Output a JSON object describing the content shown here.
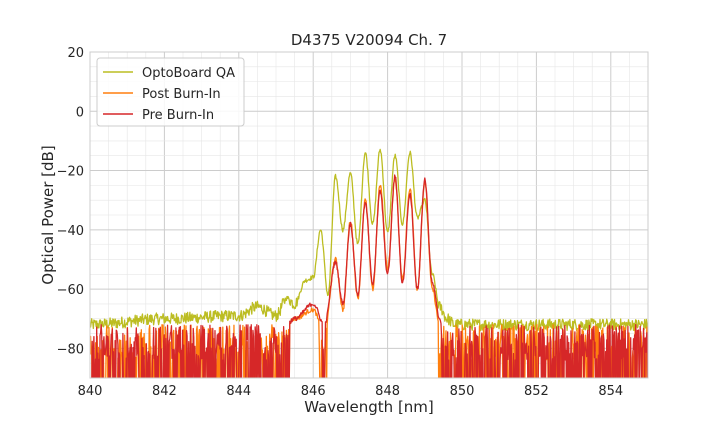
{
  "chart_data": {
    "type": "line",
    "title": "D4375 V20094 Ch. 7",
    "xlabel": "Wavelength [nm]",
    "ylabel": "Optical Power [dB]",
    "xlim": [
      840,
      855
    ],
    "ylim": [
      -90,
      20
    ],
    "xticks": [
      "840",
      "842",
      "844",
      "846",
      "848",
      "850",
      "852",
      "854"
    ],
    "yticks": [
      "20",
      "0",
      "−20",
      "−40",
      "−60",
      "−80"
    ],
    "grid": true,
    "legend_position": "top-left",
    "series": [
      {
        "name": "OptoBoard QA",
        "color": "#bcbd22",
        "noise_floor": -72,
        "x": [
          840.0,
          842.0,
          844.0,
          844.5,
          845.0,
          845.3,
          845.5,
          845.8,
          846.0,
          846.2,
          846.4,
          846.6,
          846.8,
          847.0,
          847.2,
          847.4,
          847.6,
          847.8,
          848.0,
          848.2,
          848.4,
          848.6,
          848.8,
          849.0,
          849.2,
          849.4,
          849.6,
          849.8,
          850.0,
          855.0
        ],
        "values": [
          -72,
          -70,
          -69,
          -66,
          -69,
          -63,
          -65,
          -57,
          -56,
          -40,
          -62,
          -22,
          -40,
          -21,
          -45,
          -14,
          -38,
          -13,
          -41,
          -15,
          -38,
          -14,
          -36,
          -30,
          -55,
          -66,
          -70,
          -72,
          -72,
          -72
        ]
      },
      {
        "name": "Post Burn-In",
        "color": "#ff7f0e",
        "noise_floor": -80,
        "x": [
          840.0,
          840.6,
          844.0,
          845.0,
          845.5,
          846.0,
          846.3,
          846.6,
          846.8,
          847.0,
          847.2,
          847.4,
          847.6,
          847.8,
          848.0,
          848.2,
          848.4,
          848.6,
          848.8,
          849.0,
          849.2,
          849.4,
          849.6,
          850.0,
          855.0
        ],
        "values": [
          -72,
          -80,
          -80,
          -78,
          -70,
          -67,
          -75,
          -50,
          -67,
          -37,
          -63,
          -30,
          -60,
          -25,
          -53,
          -23,
          -57,
          -26,
          -60,
          -24,
          -60,
          -72,
          -82,
          -80,
          -80
        ]
      },
      {
        "name": "Pre Burn-In",
        "color": "#d62728",
        "noise_floor": -80,
        "x": [
          840.0,
          840.6,
          844.0,
          845.0,
          845.5,
          846.0,
          846.3,
          846.6,
          846.8,
          847.0,
          847.2,
          847.4,
          847.6,
          847.8,
          848.0,
          848.2,
          848.4,
          848.6,
          848.8,
          849.0,
          849.2,
          849.4,
          849.6,
          850.0,
          855.0
        ],
        "values": [
          -72,
          -80,
          -80,
          -78,
          -70,
          -65,
          -72,
          -51,
          -65,
          -38,
          -62,
          -31,
          -58,
          -27,
          -55,
          -22,
          -58,
          -28,
          -60,
          -23,
          -58,
          -70,
          -82,
          -80,
          -80
        ]
      }
    ]
  }
}
